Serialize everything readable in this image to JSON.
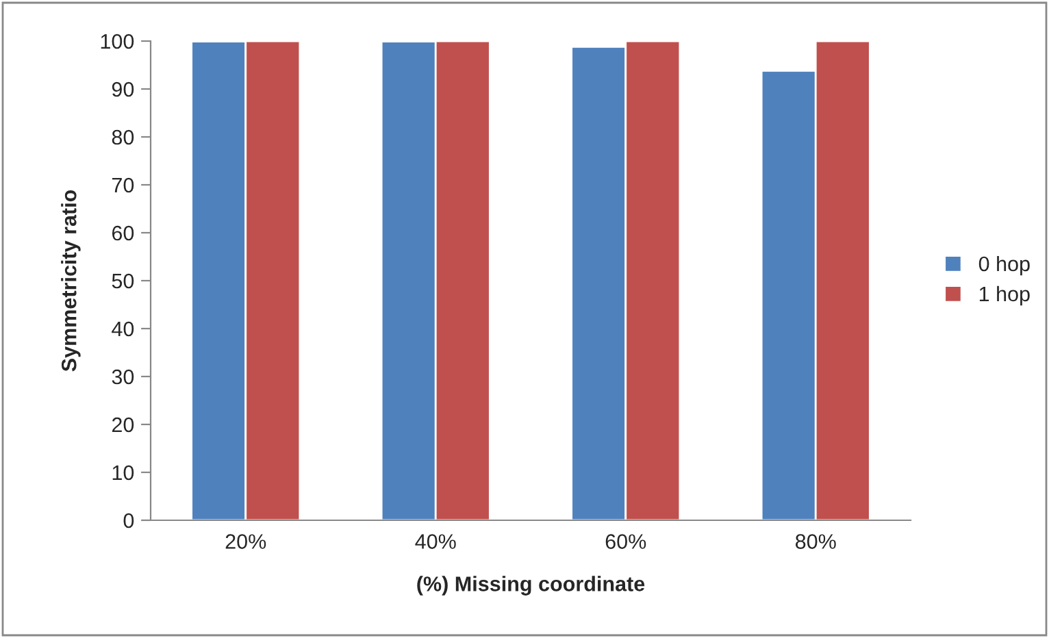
{
  "chart_data": {
    "type": "bar",
    "xlabel": "(%) Missing coordinate",
    "ylabel": "Symmetricity ratio",
    "categories": [
      "20%",
      "40%",
      "60%",
      "80%"
    ],
    "series": [
      {
        "name": "0 hop",
        "color": "#4f81bd",
        "values": [
          99.9,
          99.9,
          98.8,
          93.8
        ]
      },
      {
        "name": "1 hop",
        "color": "#c0504d",
        "values": [
          100,
          100,
          100,
          100
        ]
      }
    ],
    "ylim": [
      0,
      100
    ],
    "yticks": [
      0,
      10,
      20,
      30,
      40,
      50,
      60,
      70,
      80,
      90,
      100
    ],
    "grid": false,
    "legend": "right"
  }
}
